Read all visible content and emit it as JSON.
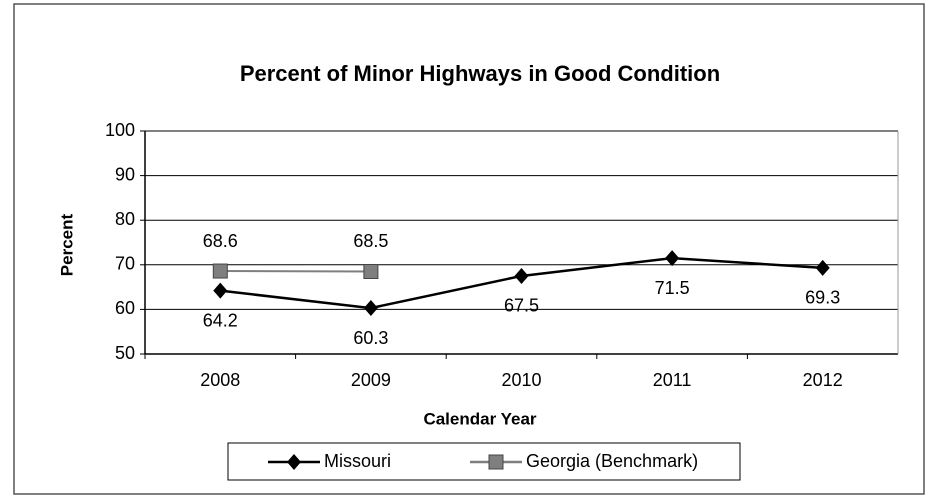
{
  "chart_data": {
    "type": "line",
    "title": "Percent of Minor Highways in Good Condition",
    "x_label": "Calendar Year",
    "y_label": "Percent",
    "categories": [
      "2008",
      "2009",
      "2010",
      "2011",
      "2012"
    ],
    "series": [
      {
        "name": "Missouri",
        "color": "#000000",
        "marker": "diamond",
        "values": [
          64.2,
          60.3,
          67.5,
          71.5,
          69.3
        ]
      },
      {
        "name": "Georgia (Benchmark)",
        "color": "#7f7f7f",
        "marker": "square",
        "values": [
          68.6,
          68.5,
          null,
          null,
          null
        ]
      }
    ],
    "ylim": [
      50,
      100
    ],
    "yticks": [
      50,
      60,
      70,
      80,
      90,
      100
    ],
    "grid": true,
    "legend": "bottom"
  }
}
